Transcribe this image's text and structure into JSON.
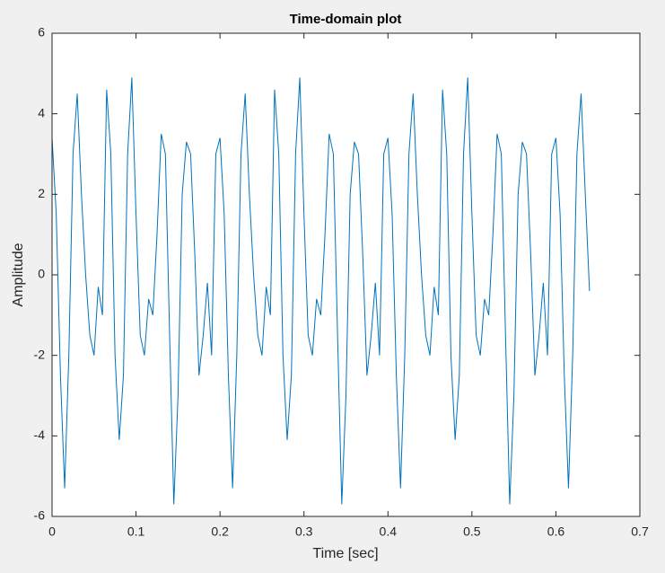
{
  "chart_data": {
    "type": "line",
    "title": "Time-domain plot",
    "xlabel": "Time [sec]",
    "ylabel": "Amplitude",
    "color": "#0072bd",
    "xlim": [
      0,
      0.7
    ],
    "xticks": [
      0,
      0.1,
      0.2,
      0.3,
      0.4,
      0.5,
      0.6,
      0.7
    ],
    "ylim": [
      -6,
      6
    ],
    "yticks": [
      -6,
      -4,
      -2,
      0,
      2,
      4,
      6
    ],
    "x": [
      0,
      0.005,
      0.01,
      0.015,
      0.02,
      0.025,
      0.03,
      0.035,
      0.04,
      0.045,
      0.05,
      0.055,
      0.06,
      0.065,
      0.07,
      0.075,
      0.08,
      0.085,
      0.09,
      0.095,
      0.1,
      0.105,
      0.11,
      0.115,
      0.12,
      0.125,
      0.13,
      0.135,
      0.14,
      0.145,
      0.15,
      0.155,
      0.16,
      0.165,
      0.17,
      0.175,
      0.18,
      0.185,
      0.19,
      0.195,
      0.2,
      0.205,
      0.21,
      0.215,
      0.22,
      0.225,
      0.23,
      0.235,
      0.24,
      0.245,
      0.25,
      0.255,
      0.26,
      0.265,
      0.27,
      0.275,
      0.28,
      0.285,
      0.29,
      0.295,
      0.3,
      0.305,
      0.31,
      0.315,
      0.32,
      0.325,
      0.33,
      0.335,
      0.34,
      0.345,
      0.35,
      0.355,
      0.36,
      0.365,
      0.37,
      0.375,
      0.38,
      0.385,
      0.39,
      0.395,
      0.4,
      0.405,
      0.41,
      0.415,
      0.42,
      0.425,
      0.43,
      0.435,
      0.44,
      0.445,
      0.45,
      0.455,
      0.46,
      0.465,
      0.47,
      0.475,
      0.48,
      0.485,
      0.49,
      0.495,
      0.5,
      0.505,
      0.51,
      0.515,
      0.52,
      0.525,
      0.53,
      0.535,
      0.54,
      0.545,
      0.55,
      0.555,
      0.56,
      0.565,
      0.57,
      0.575,
      0.58,
      0.585,
      0.59,
      0.595,
      0.6,
      0.605,
      0.61,
      0.615,
      0.62,
      0.625,
      0.63,
      0.635,
      0.64
    ],
    "values": [
      3.4,
      1.5,
      -2.5,
      -5.3,
      -2,
      3,
      4.5,
      2,
      0,
      -1.5,
      -2,
      -0.3,
      -1,
      4.6,
      3,
      -2,
      -4.1,
      -2.5,
      3,
      4.9,
      1.5,
      -1.5,
      -2,
      -0.6,
      -1,
      1,
      3.5,
      3,
      -1.5,
      -5.7,
      -3,
      2,
      3.3,
      3,
      0.5,
      -2.5,
      -1.5,
      -0.2,
      -2,
      3,
      3.4,
      1.5,
      -2.5,
      -5.3,
      -2,
      3,
      4.5,
      2,
      0,
      -1.5,
      -2,
      -0.3,
      -1,
      4.6,
      3,
      -2,
      -4.1,
      -2.5,
      3,
      4.9,
      1.5,
      -1.5,
      -2,
      -0.6,
      -1,
      1,
      3.5,
      3,
      -1.5,
      -5.7,
      -3,
      2,
      3.3,
      3,
      0.5,
      -2.5,
      -1.5,
      -0.2,
      -2,
      3,
      3.4,
      1.5,
      -2.5,
      -5.3,
      -2,
      3,
      4.5,
      2,
      0,
      -1.5,
      -2,
      -0.3,
      -1,
      4.6,
      3,
      -2,
      -4.1,
      -2.5,
      3,
      4.9,
      1.5,
      -1.5,
      -2,
      -0.6,
      -1,
      1,
      3.5,
      3,
      -1.5,
      -5.7,
      -3,
      2,
      3.3,
      3,
      0.5,
      -2.5,
      -1.5,
      -0.2,
      -2,
      3,
      3.4,
      1.5,
      -2.5,
      -5.3,
      -2,
      3,
      4.5,
      2,
      -0.4
    ]
  }
}
